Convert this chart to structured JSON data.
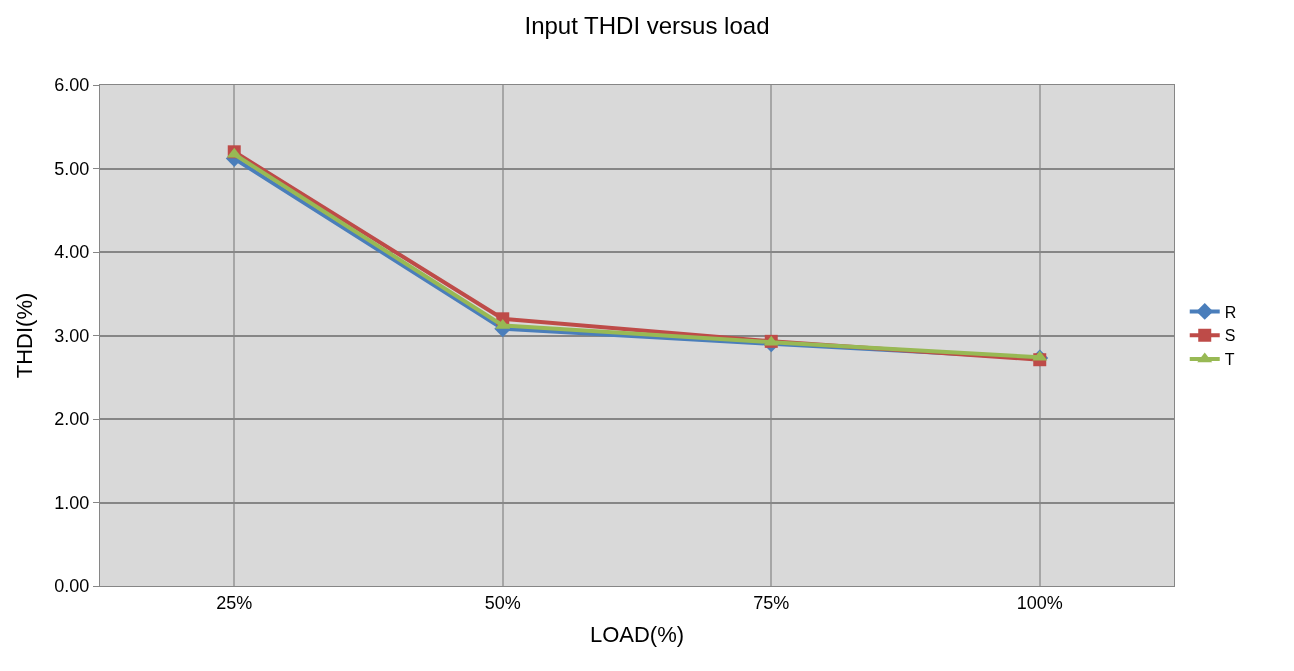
{
  "chart_data": {
    "type": "line",
    "title": "Input THDI versus load",
    "xlabel": "LOAD(%)",
    "ylabel": "THDI(%)",
    "categories": [
      "25%",
      "50%",
      "75%",
      "100%"
    ],
    "series": [
      {
        "name": "R",
        "color": "#4a7ebb",
        "marker": "diamond",
        "values": [
          5.12,
          3.08,
          2.9,
          2.73
        ]
      },
      {
        "name": "S",
        "color": "#be4b48",
        "marker": "square",
        "values": [
          5.2,
          3.2,
          2.93,
          2.71
        ]
      },
      {
        "name": "T",
        "color": "#98b954",
        "marker": "triangle",
        "values": [
          5.17,
          3.12,
          2.92,
          2.74
        ]
      }
    ],
    "ylim": [
      0,
      6
    ],
    "yticks": [
      {
        "value": 0,
        "label": "0.00"
      },
      {
        "value": 1,
        "label": "1.00"
      },
      {
        "value": 2,
        "label": "2.00"
      },
      {
        "value": 3,
        "label": "3.00"
      },
      {
        "value": 4,
        "label": "4.00"
      },
      {
        "value": 5,
        "label": "5.00"
      },
      {
        "value": 6,
        "label": "6.00"
      }
    ],
    "grid": true,
    "legend": "right",
    "line_style": "solid"
  }
}
